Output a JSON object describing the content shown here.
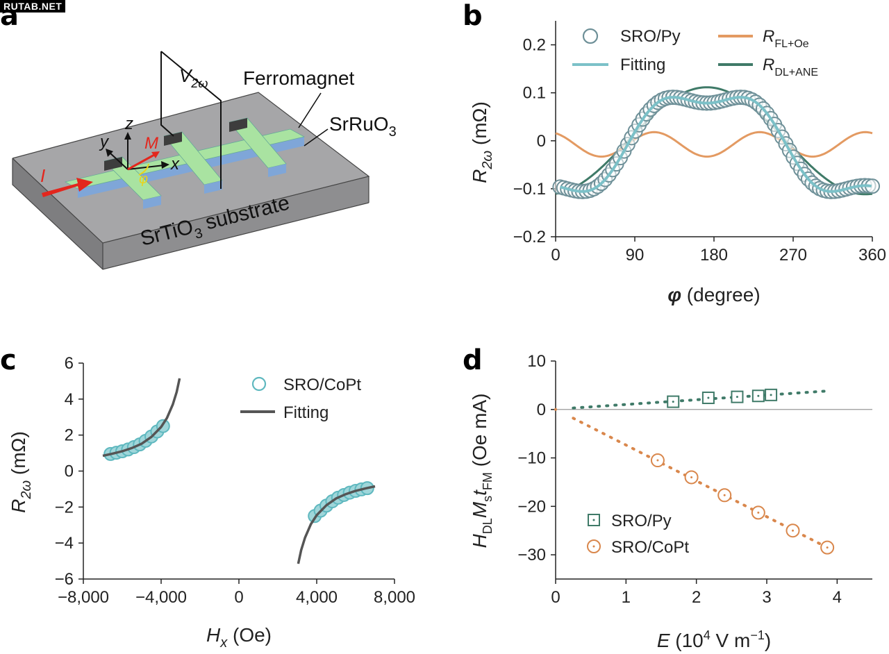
{
  "watermark": "RUTAB.NET",
  "panels": {
    "a": {
      "letter": "a",
      "labels": {
        "v2w": "V",
        "v2w_sub": "2ω",
        "ferromagnet": "Ferromagnet",
        "srruo3": "SrRuO",
        "srruo3_sub": "3",
        "substrate_a": "SrTiO",
        "substrate_sub": "3",
        "substrate_b": " substrate",
        "current": "I",
        "axis_x": "x",
        "axis_y": "y",
        "axis_z": "z",
        "magnetization": "M",
        "angle": "φ"
      },
      "colors": {
        "substrate": "#a3a3a5",
        "ferromagnet": "#aee3a6",
        "srruo3": "#8fb6e6",
        "arrow": "#e3261d",
        "angle": "#e9d31a"
      }
    },
    "b": {
      "letter": "b",
      "ylabel_main": "R",
      "ylabel_sub": "2ω",
      "ylabel_unit": " (mΩ)",
      "xlabel_main": "φ",
      "xlabel_unit": " (degree)",
      "legend": {
        "sro_py": "SRO/Py",
        "fitting": "Fitting",
        "r_fl_main": "R",
        "r_fl_sub": "FL+Oe",
        "r_dl_main": "R",
        "r_dl_sub": "DL+ANE"
      }
    },
    "c": {
      "letter": "c",
      "ylabel_main": "R",
      "ylabel_sub": "2ω",
      "ylabel_unit": " (mΩ)",
      "xlabel_main": "H",
      "xlabel_sub": "x",
      "xlabel_unit": " (Oe)",
      "legend": {
        "sro_copt": "SRO/CoPt",
        "fitting": "Fitting"
      }
    },
    "d": {
      "letter": "d",
      "ylabel_parts": [
        "H",
        "DL",
        "M",
        "s",
        "t",
        "FM",
        " (Oe mA)"
      ],
      "xlabel_parts": [
        "E",
        " (10",
        "4",
        " V m",
        "−1",
        ")"
      ],
      "legend": {
        "sro_py": "SRO/Py",
        "sro_copt": "SRO/CoPt"
      }
    }
  },
  "chart_data": [
    {
      "panel": "b",
      "type": "line",
      "xlim": [
        0,
        360
      ],
      "ylim": [
        -0.2,
        0.25
      ],
      "xticks": [
        0,
        90,
        180,
        270,
        360
      ],
      "xtick_labels": [
        "0",
        "90",
        "180",
        "270",
        "360"
      ],
      "yticks": [
        -0.2,
        -0.1,
        0,
        0.1,
        0.2
      ],
      "ytick_labels": [
        "−0.2",
        "−0.1",
        "0",
        "0.1",
        "0.2"
      ],
      "legend_placement": "top",
      "colors": {
        "sro_py": "#6e9098",
        "fitting": "#7cc1c8",
        "r_fl": "#e39a62",
        "r_dl": "#3f7a68"
      },
      "series": [
        {
          "name": "SRO/Py",
          "kind": "markers",
          "model": {
            "offset": -0.0075,
            "a1": -0.1115,
            "a3": 0.0255,
            "phase_shift": 8
          },
          "x_range": [
            5,
            360
          ],
          "n_points": 84
        },
        {
          "name": "Fitting",
          "kind": "line",
          "model": {
            "offset": -0.0075,
            "a1": -0.1115,
            "a3": 0.0255,
            "phase_shift": 8
          },
          "x_range": [
            5,
            360
          ]
        },
        {
          "name": "R_FL+Oe",
          "kind": "line",
          "model": {
            "offset": -0.0075,
            "a1": 0,
            "a3": 0.0255,
            "phase_shift": 8
          },
          "x_range": [
            0,
            360
          ]
        },
        {
          "name": "R_DL+ANE",
          "kind": "line",
          "model": {
            "offset": 0,
            "a1": -0.1115,
            "a3": 0,
            "phase_shift": 8
          },
          "x_range": [
            0,
            360
          ]
        }
      ]
    },
    {
      "panel": "c",
      "type": "line",
      "xlim": [
        -8000,
        8000
      ],
      "ylim": [
        -6,
        6
      ],
      "xticks": [
        -8000,
        -4000,
        0,
        4000,
        8000
      ],
      "xtick_labels": [
        "−8,000",
        "−4,000",
        "0",
        "4,000",
        "8,000"
      ],
      "yticks": [
        -6,
        -4,
        -2,
        0,
        2,
        4,
        6
      ],
      "ytick_labels": [
        "−6",
        "−4",
        "−2",
        "0",
        "2",
        "4",
        "6"
      ],
      "legend_placement": "top-right",
      "colors": {
        "data": "#5fb8bf",
        "fit": "#555555"
      },
      "series": [
        {
          "name": "SRO/CoPt",
          "kind": "markers",
          "segments": [
            {
              "x": [
                -6600,
                -6300,
                -6000,
                -5700,
                -5400,
                -5100,
                -4800,
                -4500,
                -4200,
                -3900
              ],
              "y": [
                0.95,
                1.02,
                1.1,
                1.2,
                1.33,
                1.48,
                1.68,
                1.92,
                2.2,
                2.5
              ]
            },
            {
              "x": [
                3900,
                4200,
                4500,
                4800,
                5100,
                5400,
                5700,
                6000,
                6300,
                6600
              ],
              "y": [
                -2.5,
                -2.2,
                -1.92,
                -1.68,
                -1.48,
                -1.33,
                -1.2,
                -1.1,
                -1.02,
                -0.95
              ]
            }
          ]
        },
        {
          "name": "Fitting",
          "kind": "line",
          "segments": [
            {
              "x": [
                -7000,
                -6500,
                -6000,
                -5500,
                -5000,
                -4500,
                -4000,
                -3700,
                -3400,
                -3200,
                -3050
              ],
              "y": [
                0.85,
                0.97,
                1.1,
                1.28,
                1.52,
                1.9,
                2.45,
                2.95,
                3.7,
                4.4,
                5.15
              ]
            },
            {
              "x": [
                3050,
                3200,
                3400,
                3700,
                4000,
                4500,
                5000,
                5500,
                6000,
                6500,
                7000
              ],
              "y": [
                -5.15,
                -4.4,
                -3.7,
                -2.95,
                -2.45,
                -1.9,
                -1.52,
                -1.28,
                -1.1,
                -0.97,
                -0.85
              ]
            }
          ]
        }
      ]
    },
    {
      "panel": "d",
      "type": "scatter",
      "xlim": [
        0,
        4.5
      ],
      "ylim": [
        -35,
        10
      ],
      "xticks": [
        0,
        1,
        2,
        3,
        4
      ],
      "xtick_labels": [
        "0",
        "1",
        "2",
        "3",
        "4"
      ],
      "yticks": [
        -30,
        -20,
        -10,
        0,
        10
      ],
      "ytick_labels": [
        "−30",
        "−20",
        "−10",
        "0",
        "10"
      ],
      "legend_placement": "bottom-left",
      "colors": {
        "sro_py": "#3f7a68",
        "sro_copt": "#d9874c"
      },
      "series": [
        {
          "name": "SRO/Py",
          "marker": "square",
          "x": [
            1.67,
            2.17,
            2.58,
            2.88,
            3.06
          ],
          "y": [
            1.6,
            2.4,
            2.6,
            2.8,
            3.0
          ],
          "fit_line": {
            "x": [
              0.25,
              3.85
            ],
            "y": [
              0.3,
              3.8
            ]
          }
        },
        {
          "name": "SRO/CoPt",
          "marker": "circle",
          "x": [
            1.45,
            1.93,
            2.4,
            2.88,
            3.37,
            3.86
          ],
          "y": [
            -10.5,
            -14.0,
            -17.7,
            -21.3,
            -25.0,
            -28.5
          ],
          "fit_line": {
            "x": [
              0.25,
              3.86
            ],
            "y": [
              -1.8,
              -28.5
            ]
          }
        }
      ]
    }
  ]
}
